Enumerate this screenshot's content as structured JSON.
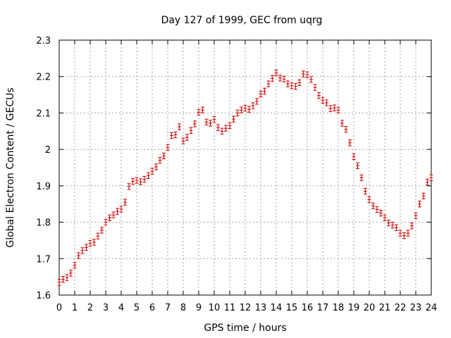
{
  "chart_data": {
    "type": "scatter",
    "title": "Day 127 of 1999, GEC from uqrg",
    "xlabel": "GPS time / hours",
    "ylabel": "Global Electron Content / GECUs",
    "xlim": [
      0,
      24
    ],
    "ylim": [
      1.6,
      2.3
    ],
    "xticks": [
      0,
      1,
      2,
      3,
      4,
      5,
      6,
      7,
      8,
      9,
      10,
      11,
      12,
      13,
      14,
      15,
      16,
      17,
      18,
      19,
      20,
      21,
      22,
      23,
      24
    ],
    "yticks": [
      1.6,
      1.7,
      1.8,
      1.9,
      2.0,
      2.1,
      2.2,
      2.3
    ],
    "ytick_labels": [
      "1.6",
      "1.7",
      "1.8",
      "1.9",
      "2",
      "2.1",
      "2.2",
      "2.3"
    ],
    "grid": true,
    "error": 0.008,
    "marker_color": "#cc0000",
    "grid_color": "#a0a0a0",
    "series": [
      {
        "name": "GEC",
        "x": [
          0.0,
          0.25,
          0.5,
          0.75,
          1.0,
          1.25,
          1.5,
          1.75,
          2.0,
          2.25,
          2.5,
          2.75,
          3.0,
          3.25,
          3.5,
          3.75,
          4.0,
          4.25,
          4.5,
          4.75,
          5.0,
          5.25,
          5.5,
          5.75,
          6.0,
          6.25,
          6.5,
          6.75,
          7.0,
          7.25,
          7.5,
          7.75,
          8.0,
          8.25,
          8.5,
          8.75,
          9.0,
          9.25,
          9.5,
          9.75,
          10.0,
          10.25,
          10.5,
          10.75,
          11.0,
          11.25,
          11.5,
          11.75,
          12.0,
          12.25,
          12.5,
          12.75,
          13.0,
          13.25,
          13.5,
          13.75,
          14.0,
          14.25,
          14.5,
          14.75,
          15.0,
          15.25,
          15.5,
          15.75,
          16.0,
          16.25,
          16.5,
          16.75,
          17.0,
          17.25,
          17.5,
          17.75,
          18.0,
          18.25,
          18.5,
          18.75,
          19.0,
          19.25,
          19.5,
          19.75,
          20.0,
          20.25,
          20.5,
          20.75,
          21.0,
          21.25,
          21.5,
          21.75,
          22.0,
          22.25,
          22.5,
          22.75,
          23.0,
          23.25,
          23.5,
          23.75,
          24.0
        ],
        "y": [
          1.635,
          1.643,
          1.648,
          1.66,
          1.682,
          1.708,
          1.722,
          1.731,
          1.742,
          1.745,
          1.762,
          1.778,
          1.8,
          1.812,
          1.82,
          1.83,
          1.836,
          1.855,
          1.898,
          1.912,
          1.915,
          1.911,
          1.918,
          1.928,
          1.94,
          1.952,
          1.97,
          1.982,
          2.005,
          2.038,
          2.04,
          2.062,
          2.023,
          2.033,
          2.052,
          2.07,
          2.102,
          2.108,
          2.075,
          2.072,
          2.082,
          2.06,
          2.05,
          2.058,
          2.065,
          2.083,
          2.1,
          2.108,
          2.113,
          2.11,
          2.12,
          2.132,
          2.152,
          2.16,
          2.18,
          2.195,
          2.21,
          2.196,
          2.193,
          2.18,
          2.175,
          2.173,
          2.183,
          2.207,
          2.205,
          2.192,
          2.17,
          2.148,
          2.135,
          2.128,
          2.112,
          2.114,
          2.108,
          2.072,
          2.055,
          2.018,
          1.98,
          1.955,
          1.922,
          1.885,
          1.862,
          1.845,
          1.835,
          1.825,
          1.812,
          1.798,
          1.792,
          1.785,
          1.77,
          1.763,
          1.77,
          1.79,
          1.818,
          1.85,
          1.872,
          1.91,
          1.922
        ]
      }
    ]
  }
}
